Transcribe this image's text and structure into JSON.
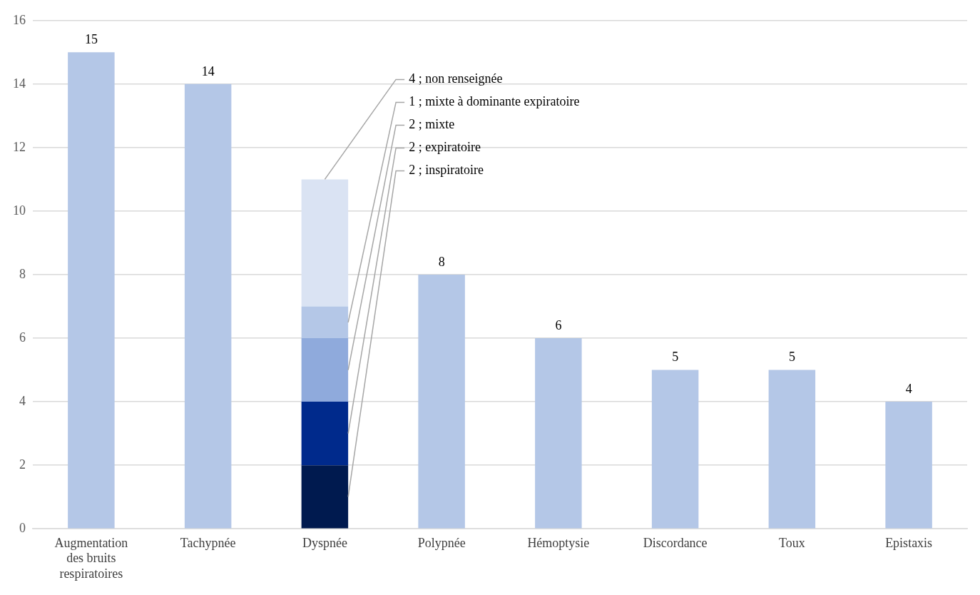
{
  "chart_data": {
    "type": "bar",
    "stacked": true,
    "categories": [
      "Augmentation des bruits respiratoires",
      "Tachypnée",
      "Dyspnée",
      "Polypnée",
      "Hémoptysie",
      "Discordance",
      "Toux",
      "Epistaxis"
    ],
    "series": [
      {
        "color": "#b4c7e7",
        "values": [
          15,
          14,
          null,
          8,
          6,
          5,
          5,
          4
        ],
        "value_labels": [
          "15",
          "14",
          null,
          "8",
          "6",
          "5",
          "5",
          "4"
        ]
      },
      {
        "color": "#001a4f",
        "values": [
          null,
          null,
          2,
          null,
          null,
          null,
          null,
          null
        ],
        "value_labels": [
          null,
          null,
          "2 ; inspiratoire",
          null,
          null,
          null,
          null,
          null
        ]
      },
      {
        "color": "#002a8c",
        "values": [
          null,
          null,
          2,
          null,
          null,
          null,
          null,
          null
        ],
        "value_labels": [
          null,
          null,
          "2 ; expiratoire",
          null,
          null,
          null,
          null,
          null
        ]
      },
      {
        "color": "#8faadc",
        "values": [
          null,
          null,
          2,
          null,
          null,
          null,
          null,
          null
        ],
        "value_labels": [
          null,
          null,
          "2 ; mixte",
          null,
          null,
          null,
          null,
          null
        ]
      },
      {
        "color": "#b4c7e7",
        "values": [
          null,
          null,
          1,
          null,
          null,
          null,
          null,
          null
        ],
        "value_labels": [
          null,
          null,
          "1 ; mixte à dominante expiratoire",
          null,
          null,
          null,
          null,
          null
        ]
      },
      {
        "color": "#dae3f3",
        "values": [
          null,
          null,
          4,
          null,
          null,
          null,
          null,
          null
        ],
        "value_labels": [
          null,
          null,
          "4 ; non renseignée",
          null,
          null,
          null,
          null,
          null
        ]
      }
    ],
    "ylim": [
      0,
      16
    ],
    "yticks": [
      0,
      2,
      4,
      6,
      8,
      10,
      12,
      14,
      16
    ],
    "grid": "y",
    "legend": false
  }
}
